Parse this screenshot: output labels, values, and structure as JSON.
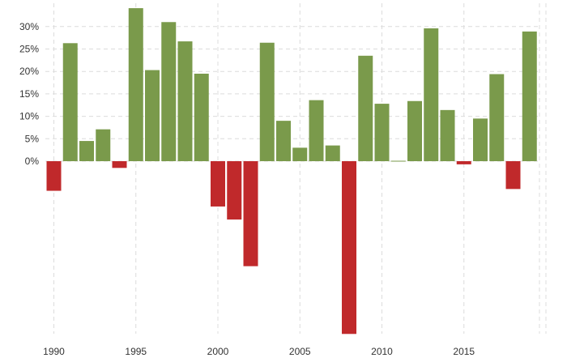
{
  "chart_data": {
    "type": "bar",
    "title": "",
    "xlabel": "",
    "ylabel": "",
    "x": [
      1990,
      1991,
      1992,
      1993,
      1994,
      1995,
      1996,
      1997,
      1998,
      1999,
      2000,
      2001,
      2002,
      2003,
      2004,
      2005,
      2006,
      2007,
      2008,
      2009,
      2010,
      2011,
      2012,
      2013,
      2014,
      2015,
      2016,
      2017,
      2018,
      2019
    ],
    "values": [
      -6.6,
      26.3,
      4.5,
      7.1,
      -1.5,
      34.1,
      20.3,
      31.0,
      26.7,
      19.5,
      -10.1,
      -13.0,
      -23.4,
      26.4,
      9.0,
      3.0,
      13.6,
      3.5,
      -38.5,
      23.5,
      12.8,
      0.0,
      13.4,
      29.6,
      11.4,
      -0.7,
      9.5,
      19.4,
      -6.2,
      28.9
    ],
    "ylim": [
      -38.5,
      34.5
    ],
    "y_ticks": [
      0,
      5,
      10,
      15,
      20,
      25,
      30
    ],
    "y_tick_labels": [
      "0%",
      "5%",
      "10%",
      "15%",
      "20%",
      "25%",
      "30%"
    ],
    "x_ticks": [
      1990,
      1995,
      2000,
      2005,
      2010,
      2015
    ],
    "x_tick_labels": [
      "1990",
      "1995",
      "2000",
      "2005",
      "2010",
      "2015"
    ],
    "grid": true,
    "legend": "none",
    "colors": {
      "positive": "#7a9a4b",
      "negative": "#c0292b",
      "grid": "#dcdcdc",
      "text": "#333333"
    }
  }
}
